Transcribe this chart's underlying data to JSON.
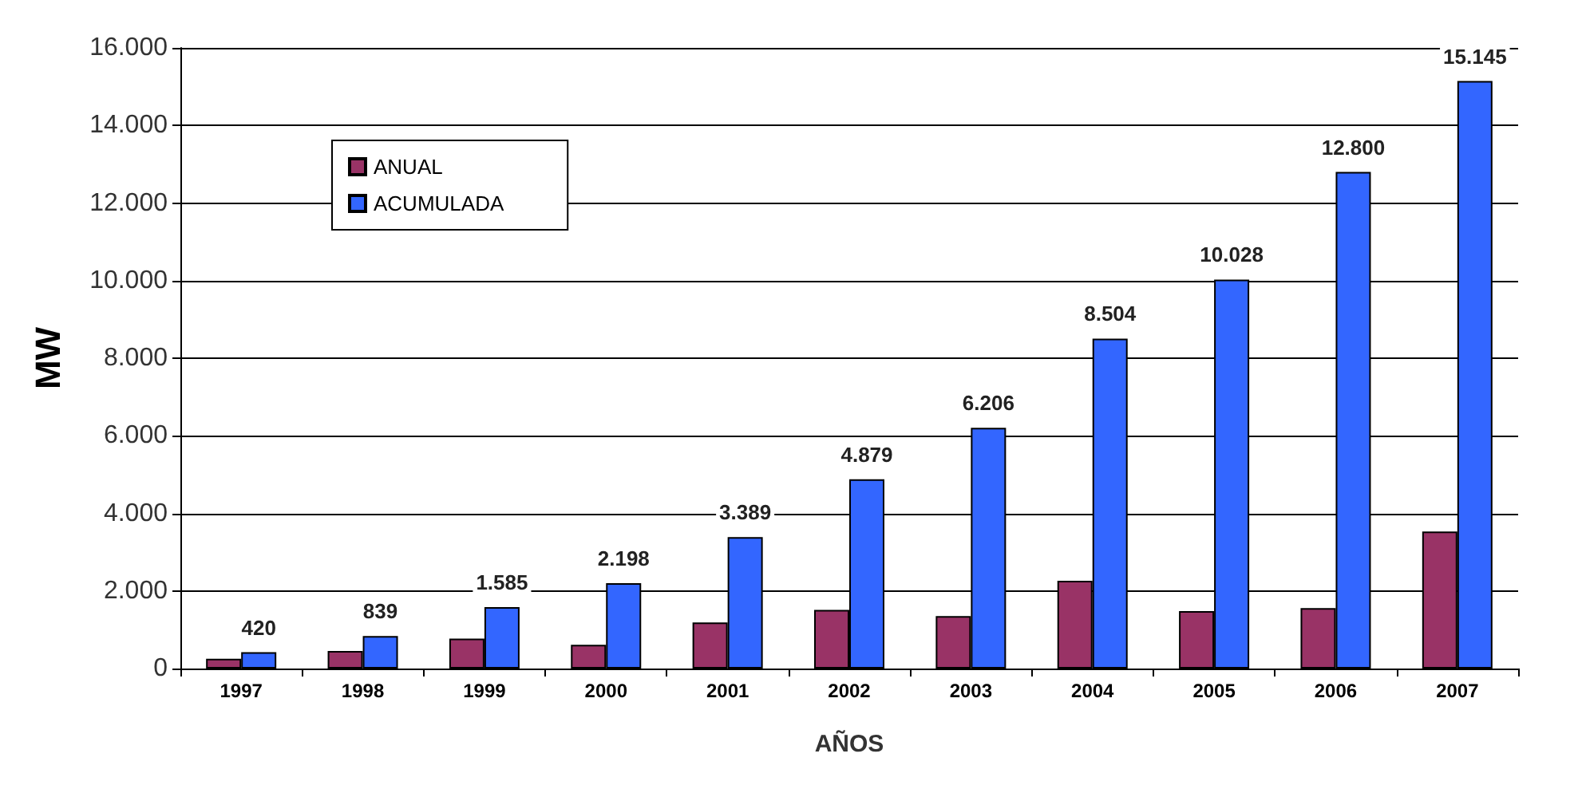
{
  "chart_data": {
    "type": "bar",
    "ylabel": "MW",
    "xlabel": "AÑOS",
    "categories": [
      "1997",
      "1998",
      "1999",
      "2000",
      "2001",
      "2002",
      "2003",
      "2004",
      "2005",
      "2006",
      "2007"
    ],
    "series": [
      {
        "name": "ANUAL",
        "color": "#993366",
        "values": [
          250,
          450,
          770,
          610,
          1190,
          1510,
          1350,
          2260,
          1480,
          1560,
          3530
        ]
      },
      {
        "name": "ACUMULADA",
        "color": "#3366ff",
        "values": [
          420,
          839,
          1585,
          2198,
          3389,
          4879,
          6206,
          8504,
          10028,
          12800,
          15145
        ],
        "value_labels": [
          "420",
          "839",
          "1.585",
          "2.198",
          "3.389",
          "4.879",
          "6.206",
          "8.504",
          "10.028",
          "12.800",
          "15.145"
        ]
      }
    ],
    "ylim": [
      0,
      16000
    ],
    "yticks": [
      0,
      {
        "value": 2000,
        "label": "2.000"
      },
      {
        "value": 4000,
        "label": "4.000"
      },
      {
        "value": 6000,
        "label": "6.000"
      },
      {
        "value": 8000,
        "label": "8.000"
      },
      {
        "value": 10000,
        "label": "10.000"
      },
      {
        "value": 12000,
        "label": "12.000"
      },
      {
        "value": 14000,
        "label": "14.000"
      },
      {
        "value": 16000,
        "label": "16.000"
      }
    ],
    "grid": "y",
    "legend": "top left"
  }
}
